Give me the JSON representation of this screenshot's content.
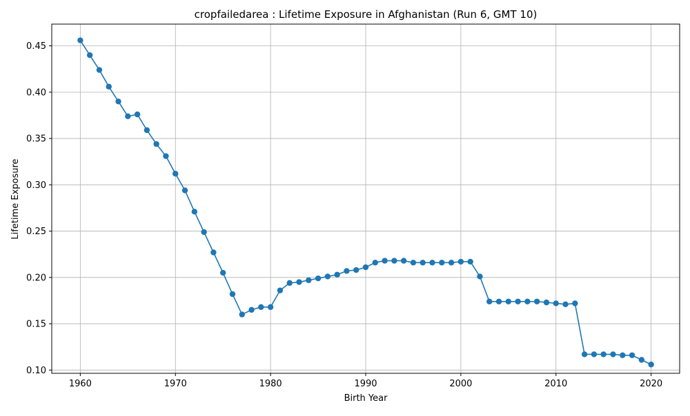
{
  "chart_data": {
    "type": "line",
    "title": "cropfailedarea : Lifetime Exposure in Afghanistan (Run 6, GMT 10)",
    "xlabel": "Birth Year",
    "ylabel": "Lifetime Exposure",
    "xlim": [
      1957,
      2023
    ],
    "ylim": [
      0.0965,
      0.4735
    ],
    "xticks": [
      1960,
      1970,
      1980,
      1990,
      2000,
      2010,
      2020
    ],
    "yticks": [
      0.1,
      0.15,
      0.2,
      0.25,
      0.3,
      0.35,
      0.4,
      0.45
    ],
    "ytick_labels": [
      "0.10",
      "0.15",
      "0.20",
      "0.25",
      "0.30",
      "0.35",
      "0.40",
      "0.45"
    ],
    "grid": true,
    "color": "#1f77b4",
    "x": [
      1960,
      1961,
      1962,
      1963,
      1964,
      1965,
      1966,
      1967,
      1968,
      1969,
      1970,
      1971,
      1972,
      1973,
      1974,
      1975,
      1976,
      1977,
      1978,
      1979,
      1980,
      1981,
      1982,
      1983,
      1984,
      1985,
      1986,
      1987,
      1988,
      1989,
      1990,
      1991,
      1992,
      1993,
      1994,
      1995,
      1996,
      1997,
      1998,
      1999,
      2000,
      2001,
      2002,
      2003,
      2004,
      2005,
      2006,
      2007,
      2008,
      2009,
      2010,
      2011,
      2012,
      2013,
      2014,
      2015,
      2016,
      2017,
      2018,
      2019,
      2020
    ],
    "y": [
      0.456,
      0.44,
      0.424,
      0.406,
      0.39,
      0.374,
      0.376,
      0.359,
      0.344,
      0.331,
      0.312,
      0.294,
      0.271,
      0.249,
      0.227,
      0.205,
      0.182,
      0.16,
      0.165,
      0.168,
      0.168,
      0.186,
      0.194,
      0.195,
      0.197,
      0.199,
      0.201,
      0.203,
      0.207,
      0.208,
      0.211,
      0.216,
      0.218,
      0.218,
      0.218,
      0.216,
      0.216,
      0.216,
      0.216,
      0.216,
      0.217,
      0.217,
      0.201,
      0.174,
      0.174,
      0.174,
      0.174,
      0.174,
      0.174,
      0.173,
      0.172,
      0.171,
      0.172,
      0.117,
      0.117,
      0.117,
      0.117,
      0.116,
      0.116,
      0.111,
      0.106
    ]
  }
}
